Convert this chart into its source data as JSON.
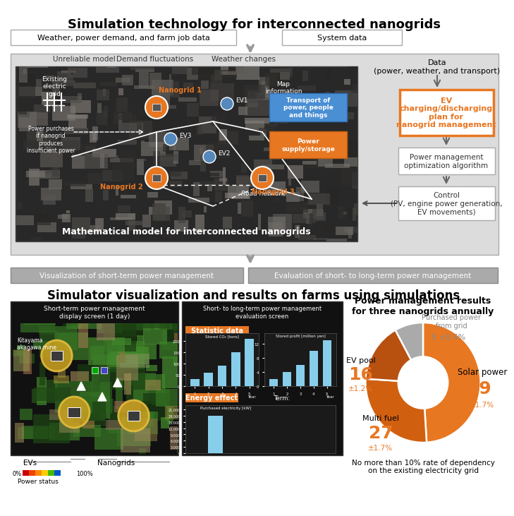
{
  "title_main": "Simulation technology for interconnected nanogrids",
  "top_input_box1": "Weather, power demand, and farm job data",
  "top_input_box2": "System data",
  "unreliable_label": "Unreliable model",
  "demand_label": "Demand fluctuations",
  "weather_label": "Weather changes",
  "map_label": "Map\ninformation",
  "transport_label": "Transport of\npower, people\nand things",
  "power_supply_label": "Power\nsupply/storage",
  "existing_grid_label": "Existing\nelectric\ngrid",
  "power_purchases_label": "Power purchases\nif nanogrid\nproduces\ninsufficient power",
  "nanogrid1_label": "Nanogrid 1",
  "nanogrid2_label": "Nanogrid 2",
  "nanogrid3_label": "Nanogrid 3",
  "ev1_label": "EV1",
  "ev2_label": "EV2",
  "ev3_label": "EV3",
  "math_model_label": "Mathematical model for interconnected nanogrids",
  "road_network_label": "Road network",
  "data_label": "Data\n(power, weather, and transport)",
  "ev_plan_label": "EV\ncharging/discharging\nplan for\nnanogrid management",
  "power_mgmt_label": "Power management\noptimization algorithm",
  "control_label": "Control\n(PV, engine power generation,\nEV movements)",
  "viz_box1": "Visualization of short-term power management",
  "viz_box2": "Evaluation of short- to long-term power management",
  "section2_title": "Simulator visualization and results on farms using simulations",
  "screen1_title": "Short-term power management\ndisplay screen (1 day)",
  "screen2_title": "Short- to long-term power management\nevaluation screen",
  "statistic_data_label": "Statistic data",
  "stored_co2_label": "Stored CO₂ [tons]",
  "stored_profit_label": "Stored profit [million yen]",
  "energy_effect_label": "Energy effect",
  "purchased_elec_label": "Purchased electricity [kW]",
  "co2_values": [
    30,
    60,
    90,
    150,
    210
  ],
  "profit_values": [
    2,
    4,
    6,
    10,
    13
  ],
  "year_labels": [
    "1",
    "2",
    "3",
    "4",
    "5"
  ],
  "donut_title": "Power management results\nfor three nanogrids annually",
  "donut_values": [
    49,
    27,
    16,
    8
  ],
  "donut_labels": [
    "Solar power",
    "Multi fuel",
    "EV pool",
    "Purchased power\nfrom grid"
  ],
  "donut_values_text": [
    "49",
    "27",
    "16",
    "8"
  ],
  "donut_pm_text": [
    "±1.7%",
    "±1.7%",
    "±1.2%",
    "±0.6%"
  ],
  "donut_note": "No more than 10% rate of dependency\non the existing electricity grid",
  "evs_label": "EVs",
  "nanogrids_label": "Nanogrids",
  "power_status_label": "Power status",
  "pct_0": "0%",
  "pct_100": "100%",
  "bg_color": "#FFFFFF",
  "orange_color": "#E87722",
  "blue_label_color": "#4A8FD4",
  "bar_blue": "#87CEEB",
  "donut_orange_main": "#E87722",
  "donut_gray_slice": "#AAAAAA",
  "seg_colors": [
    "#E87722",
    "#D06010",
    "#B85010",
    "#AAAAAA"
  ],
  "term_label": "Term:",
  "kitayama_label": "Kitayama\nakagawa mine"
}
